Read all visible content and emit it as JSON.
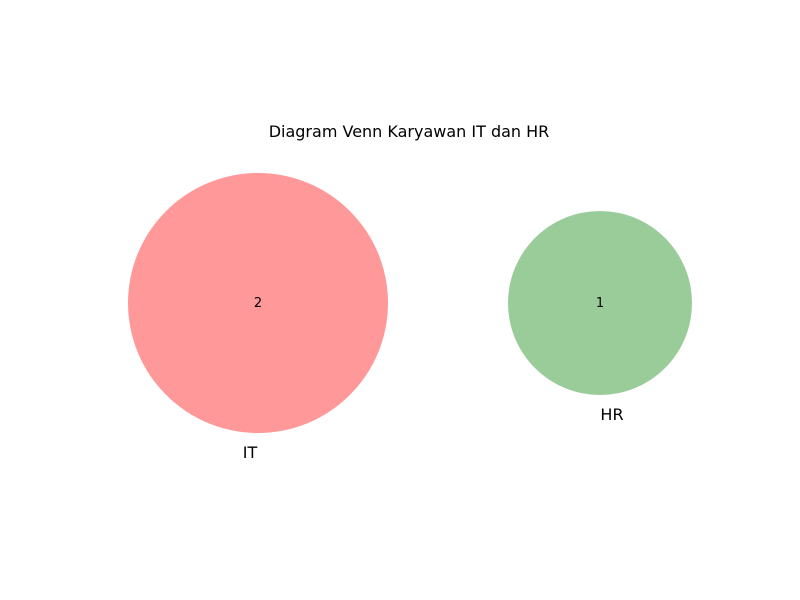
{
  "chart_data": {
    "type": "venn",
    "title": "Diagram Venn Karyawan IT dan HR",
    "sets": [
      {
        "name": "IT",
        "size": 2,
        "color": "#ff9999"
      },
      {
        "name": "HR",
        "size": 1,
        "color": "#99cc99"
      }
    ],
    "regions": [
      {
        "sets": [
          "IT"
        ],
        "label": "2"
      },
      {
        "sets": [
          "HR"
        ],
        "label": "1"
      },
      {
        "sets": [
          "IT",
          "HR"
        ],
        "label": ""
      }
    ]
  }
}
